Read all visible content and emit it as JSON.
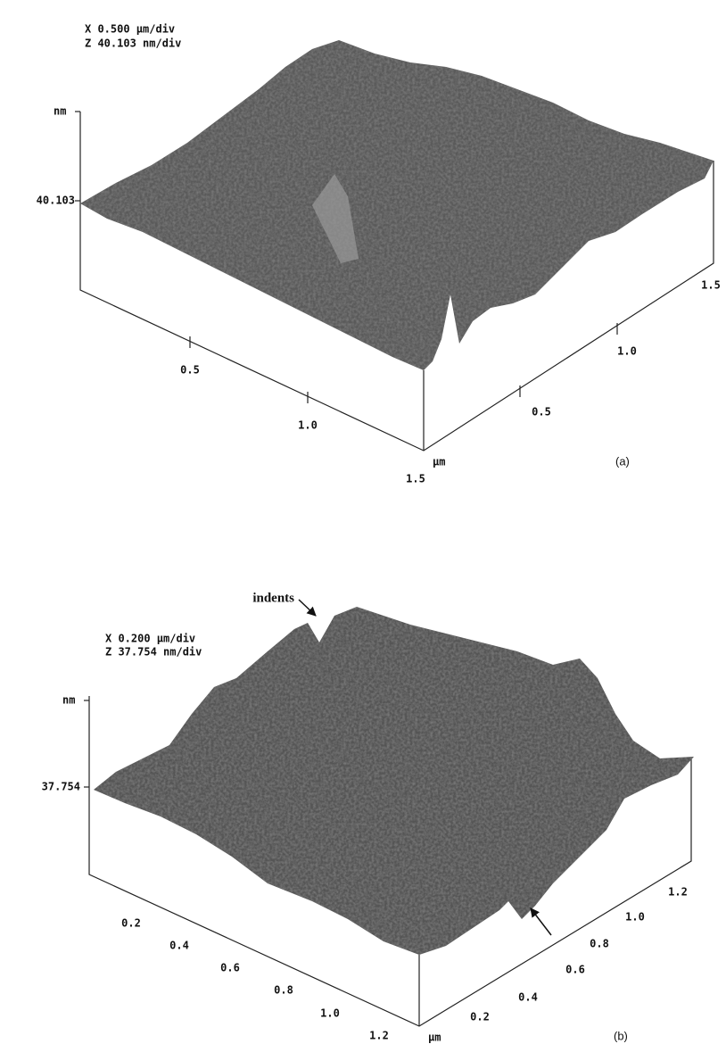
{
  "panels": [
    {
      "label": "(a)",
      "scale_x": "X  0.500 µm/div",
      "scale_z": "Z  40.103 nm/div",
      "z_unit": "nm",
      "z_tick": "40.103",
      "left_axis_ticks": [
        "0.5",
        "1.0",
        "1.5"
      ],
      "right_axis_ticks": [
        "0.5",
        "1.0",
        "1.5"
      ],
      "xy_unit": "µm"
    },
    {
      "label": "(b)",
      "scale_x": "X  0.200 µm/div",
      "scale_z": "Z  37.754 nm/div",
      "z_unit": "nm",
      "z_tick": "37.754",
      "left_axis_ticks": [
        "0.2",
        "0.4",
        "0.6",
        "0.8",
        "1.0",
        "1.2"
      ],
      "right_axis_ticks": [
        "0.2",
        "0.4",
        "0.6",
        "0.8",
        "1.0",
        "1.2"
      ],
      "xy_unit": "µm",
      "annotation": "indents"
    }
  ]
}
